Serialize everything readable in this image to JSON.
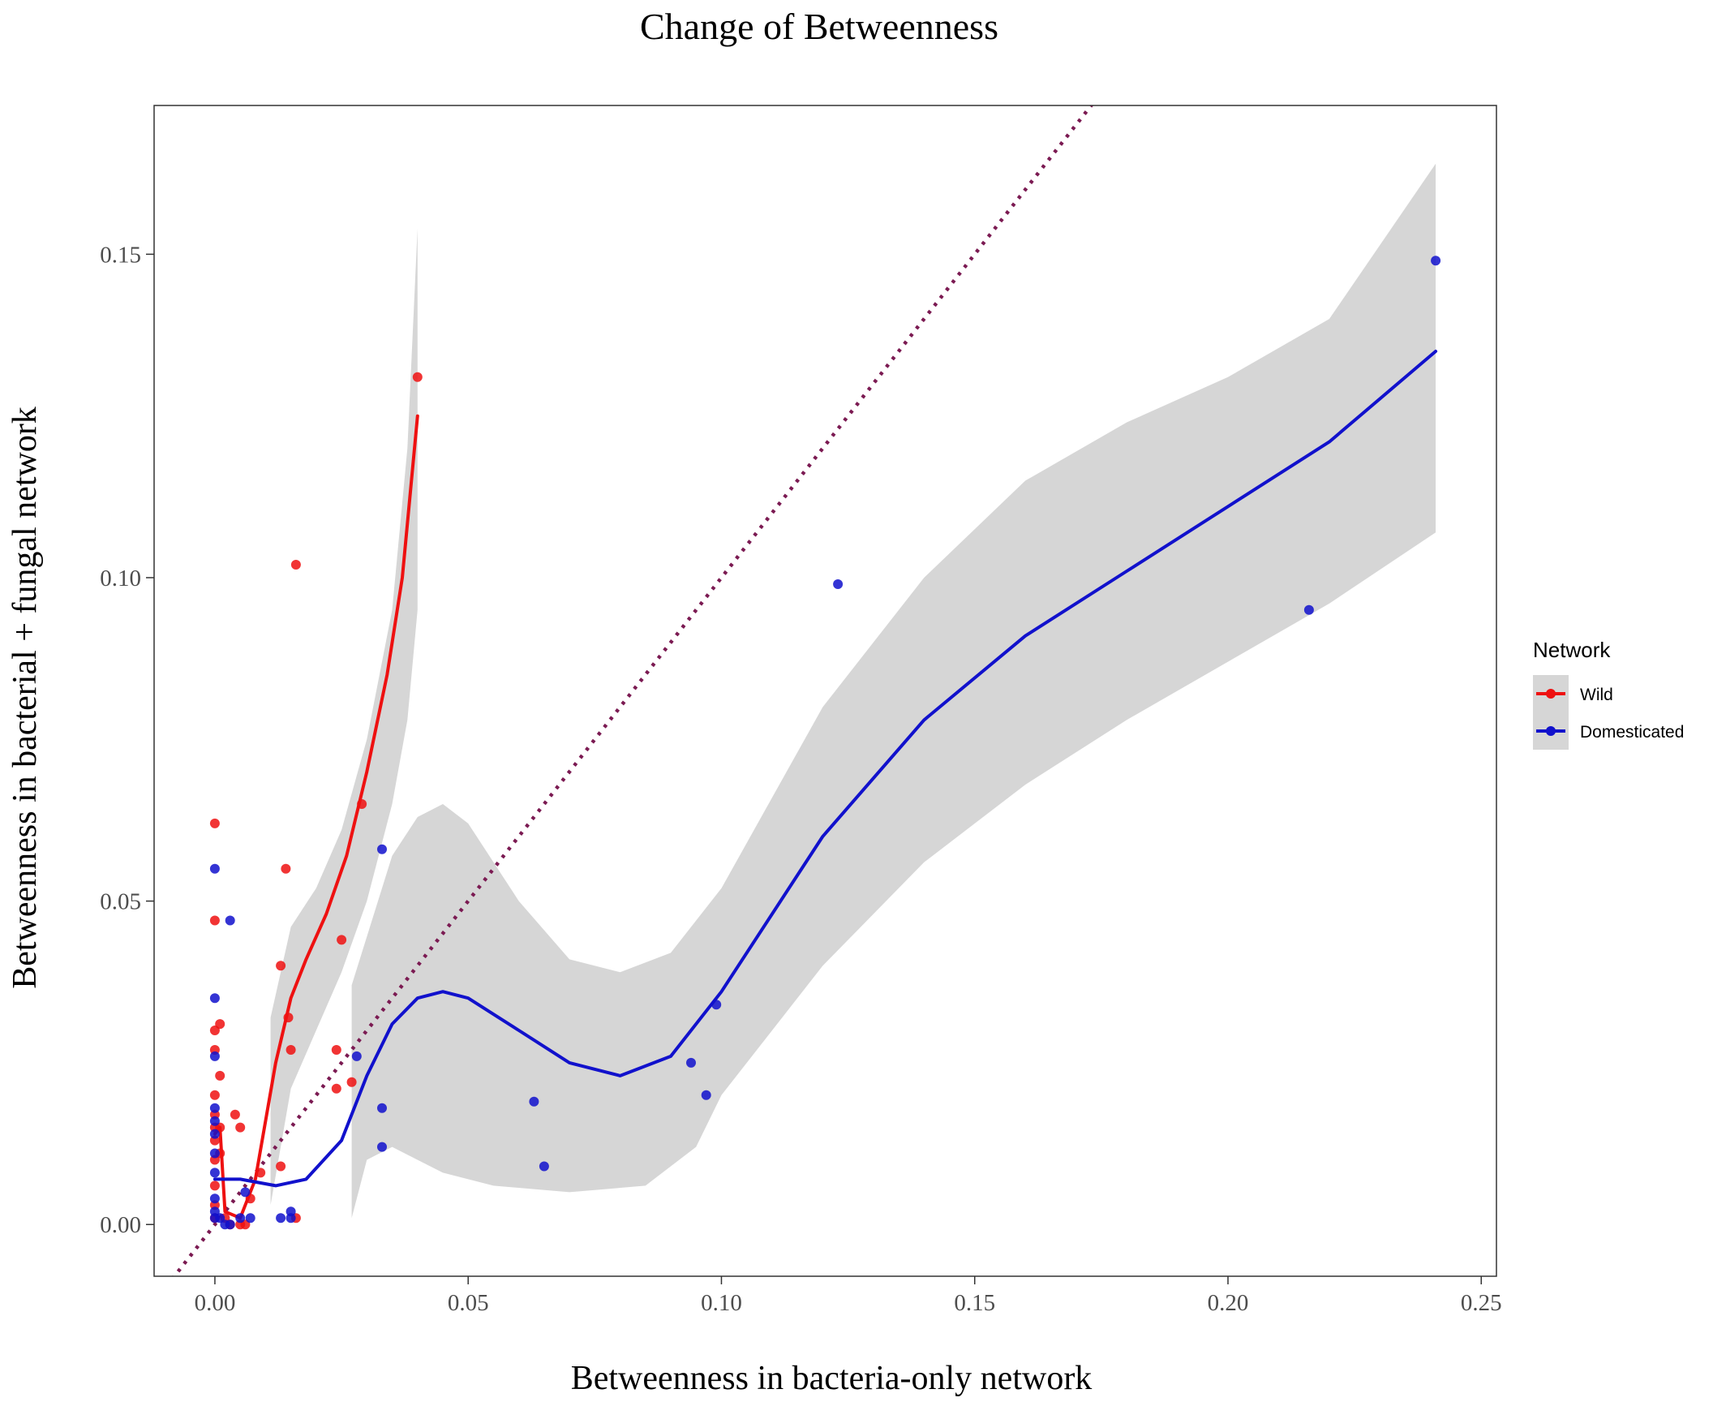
{
  "chart_data": {
    "type": "scatter",
    "title": "Change of Betweenness",
    "xlabel": "Betweenness in bacteria-only network",
    "ylabel": "Betweenness in bacterial + fungal network",
    "xlim": [
      -0.012,
      0.253
    ],
    "ylim": [
      -0.008,
      0.173
    ],
    "x_ticks": [
      0.0,
      0.05,
      0.1,
      0.15,
      0.2,
      0.25
    ],
    "x_tick_labels": [
      "0.00",
      "0.05",
      "0.10",
      "0.15",
      "0.20",
      "0.25"
    ],
    "y_ticks": [
      0.0,
      0.05,
      0.1,
      0.15
    ],
    "y_tick_labels": [
      "0.00",
      "0.05",
      "0.10",
      "0.15"
    ],
    "grid": false,
    "legend": {
      "title": "Network",
      "position": "right"
    },
    "reference_line": {
      "slope": 1,
      "intercept": 0,
      "style": "dotted",
      "color": "#7b1a52"
    },
    "series": [
      {
        "name": "Wild",
        "color": "#ee1111",
        "points": [
          [
            0.0,
            0.062
          ],
          [
            0.0,
            0.047
          ],
          [
            0.0,
            0.03
          ],
          [
            0.0,
            0.027
          ],
          [
            0.0,
            0.02
          ],
          [
            0.0,
            0.017
          ],
          [
            0.0,
            0.015
          ],
          [
            0.0,
            0.013
          ],
          [
            0.0,
            0.01
          ],
          [
            0.0,
            0.006
          ],
          [
            0.0,
            0.003
          ],
          [
            0.0,
            0.001
          ],
          [
            0.001,
            0.031
          ],
          [
            0.001,
            0.023
          ],
          [
            0.001,
            0.015
          ],
          [
            0.001,
            0.011
          ],
          [
            0.002,
            0.001
          ],
          [
            0.003,
            0.0
          ],
          [
            0.004,
            0.017
          ],
          [
            0.005,
            0.0
          ],
          [
            0.005,
            0.015
          ],
          [
            0.006,
            0.0
          ],
          [
            0.007,
            0.004
          ],
          [
            0.009,
            0.008
          ],
          [
            0.013,
            0.009
          ],
          [
            0.013,
            0.04
          ],
          [
            0.014,
            0.055
          ],
          [
            0.0145,
            0.032
          ],
          [
            0.015,
            0.027
          ],
          [
            0.016,
            0.001
          ],
          [
            0.016,
            0.102
          ],
          [
            0.024,
            0.027
          ],
          [
            0.024,
            0.021
          ],
          [
            0.025,
            0.044
          ],
          [
            0.027,
            0.022
          ],
          [
            0.029,
            0.065
          ],
          [
            0.04,
            0.131
          ]
        ],
        "smooth": [
          [
            0.0,
            0.014
          ],
          [
            0.001,
            0.015
          ],
          [
            0.002,
            0.002
          ],
          [
            0.005,
            0.001
          ],
          [
            0.008,
            0.007
          ],
          [
            0.012,
            0.025
          ],
          [
            0.015,
            0.035
          ],
          [
            0.018,
            0.041
          ],
          [
            0.022,
            0.048
          ],
          [
            0.026,
            0.057
          ],
          [
            0.03,
            0.07
          ],
          [
            0.034,
            0.085
          ],
          [
            0.037,
            0.1
          ],
          [
            0.04,
            0.125
          ]
        ],
        "band_upper": [
          [
            0.011,
            0.032
          ],
          [
            0.015,
            0.046
          ],
          [
            0.02,
            0.052
          ],
          [
            0.025,
            0.061
          ],
          [
            0.03,
            0.075
          ],
          [
            0.035,
            0.095
          ],
          [
            0.038,
            0.12
          ],
          [
            0.04,
            0.154
          ]
        ],
        "band_lower": [
          [
            0.011,
            0.003
          ],
          [
            0.015,
            0.021
          ],
          [
            0.02,
            0.03
          ],
          [
            0.025,
            0.039
          ],
          [
            0.03,
            0.05
          ],
          [
            0.035,
            0.065
          ],
          [
            0.038,
            0.078
          ],
          [
            0.04,
            0.095
          ]
        ]
      },
      {
        "name": "Domesticated",
        "color": "#1111cc",
        "points": [
          [
            0.0,
            0.055
          ],
          [
            0.0,
            0.035
          ],
          [
            0.0,
            0.026
          ],
          [
            0.0,
            0.018
          ],
          [
            0.0,
            0.016
          ],
          [
            0.0,
            0.014
          ],
          [
            0.0,
            0.011
          ],
          [
            0.0,
            0.008
          ],
          [
            0.0,
            0.004
          ],
          [
            0.0,
            0.002
          ],
          [
            0.0,
            0.001
          ],
          [
            0.001,
            0.001
          ],
          [
            0.002,
            0.0
          ],
          [
            0.003,
            0.047
          ],
          [
            0.003,
            0.0
          ],
          [
            0.005,
            0.001
          ],
          [
            0.006,
            0.005
          ],
          [
            0.007,
            0.001
          ],
          [
            0.013,
            0.001
          ],
          [
            0.015,
            0.002
          ],
          [
            0.015,
            0.001
          ],
          [
            0.028,
            0.026
          ],
          [
            0.033,
            0.058
          ],
          [
            0.033,
            0.018
          ],
          [
            0.033,
            0.012
          ],
          [
            0.063,
            0.019
          ],
          [
            0.065,
            0.009
          ],
          [
            0.094,
            0.025
          ],
          [
            0.097,
            0.02
          ],
          [
            0.099,
            0.034
          ],
          [
            0.123,
            0.099
          ],
          [
            0.216,
            0.095
          ],
          [
            0.241,
            0.149
          ]
        ],
        "smooth": [
          [
            0.0,
            0.007
          ],
          [
            0.005,
            0.007
          ],
          [
            0.012,
            0.006
          ],
          [
            0.018,
            0.007
          ],
          [
            0.025,
            0.013
          ],
          [
            0.03,
            0.023
          ],
          [
            0.035,
            0.031
          ],
          [
            0.04,
            0.035
          ],
          [
            0.045,
            0.036
          ],
          [
            0.05,
            0.035
          ],
          [
            0.06,
            0.03
          ],
          [
            0.07,
            0.025
          ],
          [
            0.08,
            0.023
          ],
          [
            0.09,
            0.026
          ],
          [
            0.1,
            0.036
          ],
          [
            0.12,
            0.06
          ],
          [
            0.14,
            0.078
          ],
          [
            0.16,
            0.091
          ],
          [
            0.18,
            0.101
          ],
          [
            0.2,
            0.111
          ],
          [
            0.22,
            0.121
          ],
          [
            0.241,
            0.135
          ]
        ],
        "band_upper": [
          [
            0.027,
            0.037
          ],
          [
            0.035,
            0.057
          ],
          [
            0.04,
            0.063
          ],
          [
            0.045,
            0.065
          ],
          [
            0.05,
            0.062
          ],
          [
            0.06,
            0.05
          ],
          [
            0.07,
            0.041
          ],
          [
            0.08,
            0.039
          ],
          [
            0.09,
            0.042
          ],
          [
            0.1,
            0.052
          ],
          [
            0.12,
            0.08
          ],
          [
            0.14,
            0.1
          ],
          [
            0.16,
            0.115
          ],
          [
            0.18,
            0.124
          ],
          [
            0.2,
            0.131
          ],
          [
            0.22,
            0.14
          ],
          [
            0.241,
            0.164
          ]
        ],
        "band_lower": [
          [
            0.027,
            0.001
          ],
          [
            0.03,
            0.01
          ],
          [
            0.035,
            0.012
          ],
          [
            0.045,
            0.008
          ],
          [
            0.055,
            0.006
          ],
          [
            0.07,
            0.005
          ],
          [
            0.085,
            0.006
          ],
          [
            0.095,
            0.012
          ],
          [
            0.1,
            0.02
          ],
          [
            0.12,
            0.04
          ],
          [
            0.14,
            0.056
          ],
          [
            0.16,
            0.068
          ],
          [
            0.18,
            0.078
          ],
          [
            0.2,
            0.087
          ],
          [
            0.22,
            0.096
          ],
          [
            0.241,
            0.107
          ]
        ]
      }
    ]
  }
}
